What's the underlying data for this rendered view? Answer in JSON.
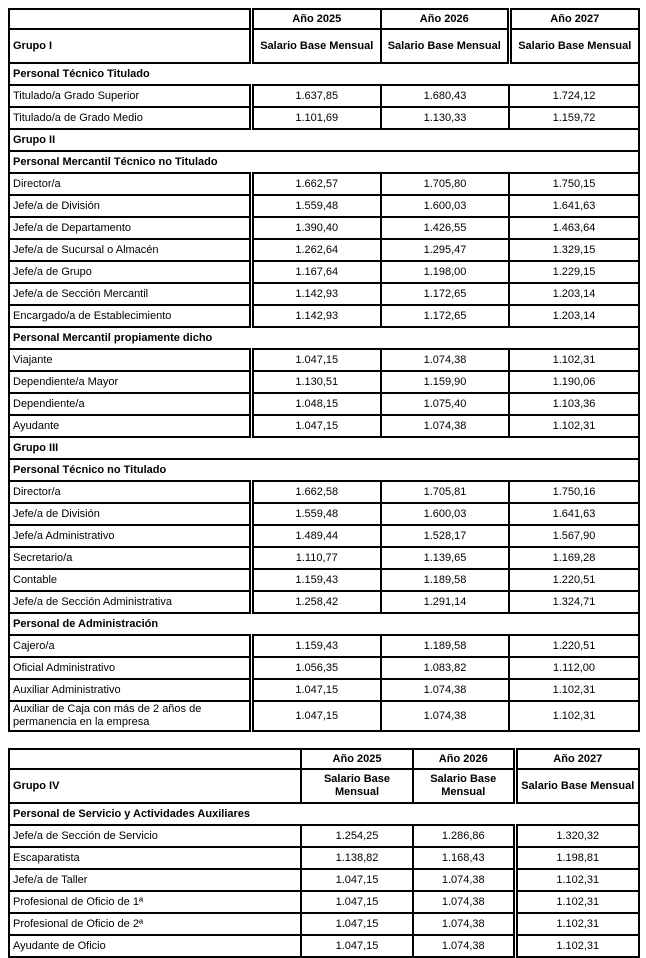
{
  "colors": {
    "border": "#000000",
    "text": "#000000",
    "page_bg": "#ffffff"
  },
  "tables": [
    {
      "group": "Grupo I",
      "years": [
        "Año 2025",
        "Año 2026",
        "Año 2027"
      ],
      "column_header": "Salario Base Mensual",
      "rows": [
        {
          "type": "section",
          "label": "Personal Técnico Titulado"
        },
        {
          "type": "data",
          "label": "Titulado/a Grado Superior",
          "values": [
            "1.637,85",
            "1.680,43",
            "1.724,12"
          ]
        },
        {
          "type": "data",
          "label": "Titulado/a de Grado Medio",
          "values": [
            "1.101,69",
            "1.130,33",
            "1.159,72"
          ]
        },
        {
          "type": "group",
          "label": "Grupo II"
        },
        {
          "type": "section",
          "label": "Personal Mercantil Técnico no Titulado"
        },
        {
          "type": "data",
          "label": "Director/a",
          "values": [
            "1.662,57",
            "1.705,80",
            "1.750,15"
          ]
        },
        {
          "type": "data",
          "label": "Jefe/a de División",
          "values": [
            "1.559,48",
            "1.600,03",
            "1.641,63"
          ]
        },
        {
          "type": "data",
          "label": "Jefe/a de Departamento",
          "values": [
            "1.390,40",
            "1.426,55",
            "1.463,64"
          ]
        },
        {
          "type": "data",
          "label": "Jefe/a de Sucursal o Almacén",
          "values": [
            "1.262,64",
            "1.295,47",
            "1.329,15"
          ]
        },
        {
          "type": "data",
          "label": "Jefe/a de Grupo",
          "values": [
            "1.167,64",
            "1.198,00",
            "1.229,15"
          ]
        },
        {
          "type": "data",
          "label": "Jefe/a de Sección Mercantil",
          "values": [
            "1.142,93",
            "1.172,65",
            "1.203,14"
          ]
        },
        {
          "type": "data",
          "label": "Encargado/a de Establecimiento",
          "values": [
            "1.142,93",
            "1.172,65",
            "1.203,14"
          ]
        },
        {
          "type": "section",
          "label": "Personal Mercantil propiamente dicho"
        },
        {
          "type": "data",
          "label": "Viajante",
          "values": [
            "1.047,15",
            "1.074,38",
            "1.102,31"
          ]
        },
        {
          "type": "data",
          "label": "Dependiente/a Mayor",
          "values": [
            "1.130,51",
            "1.159,90",
            "1.190,06"
          ]
        },
        {
          "type": "data",
          "label": "Dependiente/a",
          "values": [
            "1.048,15",
            "1.075,40",
            "1.103,36"
          ]
        },
        {
          "type": "data",
          "label": "Ayudante",
          "values": [
            "1.047,15",
            "1.074,38",
            "1.102,31"
          ]
        },
        {
          "type": "group",
          "label": "Grupo III"
        },
        {
          "type": "section",
          "label": "Personal Técnico no Titulado"
        },
        {
          "type": "data",
          "label": "Director/a",
          "values": [
            "1.662,58",
            "1.705,81",
            "1.750,16"
          ]
        },
        {
          "type": "data",
          "label": "Jefe/a de División",
          "values": [
            "1.559,48",
            "1.600,03",
            "1.641,63"
          ]
        },
        {
          "type": "data",
          "label": "Jefe/a Administrativo",
          "values": [
            "1.489,44",
            "1.528,17",
            "1.567,90"
          ]
        },
        {
          "type": "data",
          "label": "Secretario/a",
          "values": [
            "1.110,77",
            "1.139,65",
            "1.169,28"
          ]
        },
        {
          "type": "data",
          "label": "Contable",
          "values": [
            "1.159,43",
            "1.189,58",
            "1.220,51"
          ]
        },
        {
          "type": "data",
          "label": "Jefe/a de Sección Administrativa",
          "values": [
            "1.258,42",
            "1.291,14",
            "1.324,71"
          ]
        },
        {
          "type": "section",
          "label": "Personal de Administración"
        },
        {
          "type": "data",
          "label": "Cajero/a",
          "values": [
            "1.159,43",
            "1.189,58",
            "1.220,51"
          ]
        },
        {
          "type": "data",
          "label": "Oficial Administrativo",
          "values": [
            "1.056,35",
            "1.083,82",
            "1.112,00"
          ]
        },
        {
          "type": "data",
          "label": "Auxiliar Administrativo",
          "values": [
            "1.047,15",
            "1.074,38",
            "1.102,31"
          ]
        },
        {
          "type": "data",
          "label": "Auxiliar de Caja con más de 2 años de permanencia en la empresa",
          "values": [
            "1.047,15",
            "1.074,38",
            "1.102,31"
          ]
        }
      ]
    },
    {
      "group": "Grupo IV",
      "years": [
        "Año 2025",
        "Año 2026",
        "Año 2027"
      ],
      "column_header": "Salario Base Mensual",
      "rows": [
        {
          "type": "section",
          "label": "Personal de Servicio y Actividades Auxiliares"
        },
        {
          "type": "data",
          "label": "Jefe/a de Sección de Servicio",
          "values": [
            "1.254,25",
            "1.286,86",
            "1.320,32"
          ]
        },
        {
          "type": "data",
          "label": "Escaparatista",
          "values": [
            "1.138,82",
            "1.168,43",
            "1.198,81"
          ]
        },
        {
          "type": "data",
          "label": "Jefe/a de Taller",
          "values": [
            "1.047,15",
            "1.074,38",
            "1.102,31"
          ]
        },
        {
          "type": "data",
          "label": "Profesional de Oficio de 1ª",
          "values": [
            "1.047,15",
            "1.074,38",
            "1.102,31"
          ]
        },
        {
          "type": "data",
          "label": "Profesional de Oficio de 2ª",
          "values": [
            "1.047,15",
            "1.074,38",
            "1.102,31"
          ]
        },
        {
          "type": "data",
          "label": "Ayudante de Oficio",
          "values": [
            "1.047,15",
            "1.074,38",
            "1.102,31"
          ]
        }
      ]
    }
  ]
}
